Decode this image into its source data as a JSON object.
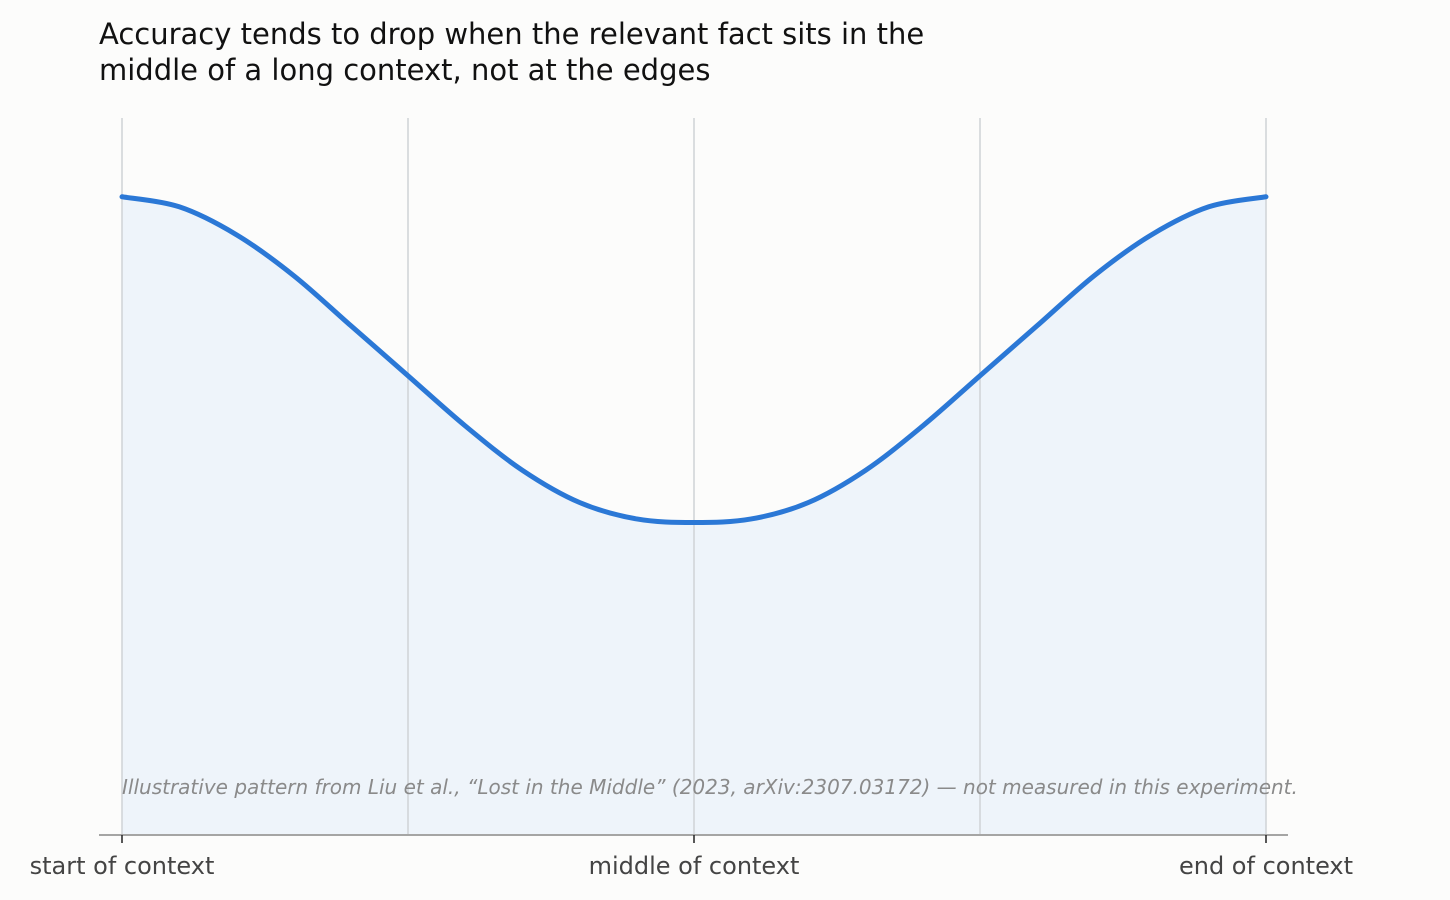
{
  "chart_data": {
    "type": "area",
    "title_lines": [
      "Accuracy tends to drop when the relevant fact sits in the",
      "middle of a long context, not at the edges"
    ],
    "xlabel": "",
    "ylabel": "",
    "xlim": [
      0,
      1
    ],
    "ylim": [
      0,
      1
    ],
    "grid": "vertical",
    "xticks": [
      0,
      0.5,
      1
    ],
    "xtick_labels": [
      "start of context",
      "middle of context",
      "end of context"
    ],
    "gridlines_x": [
      0,
      0.25,
      0.5,
      0.75,
      1
    ],
    "series": [
      {
        "x": [
          0,
          0.05,
          0.1,
          0.15,
          0.2,
          0.25,
          0.3,
          0.35,
          0.4,
          0.45,
          0.5,
          0.55,
          0.6,
          0.65,
          0.7,
          0.75,
          0.8,
          0.85,
          0.9,
          0.95,
          1
        ],
        "y": [
          0.89,
          0.876,
          0.837,
          0.78,
          0.71,
          0.64,
          0.57,
          0.508,
          0.463,
          0.44,
          0.435,
          0.44,
          0.463,
          0.508,
          0.57,
          0.64,
          0.71,
          0.78,
          0.837,
          0.876,
          0.89
        ]
      }
    ],
    "line_color": "#2b78d6",
    "fill_color": "#eef4fa",
    "note": "Illustrative pattern from Liu et al., “Lost in the Middle” (2023, arXiv:2307.03172) — not measured in this experiment."
  }
}
